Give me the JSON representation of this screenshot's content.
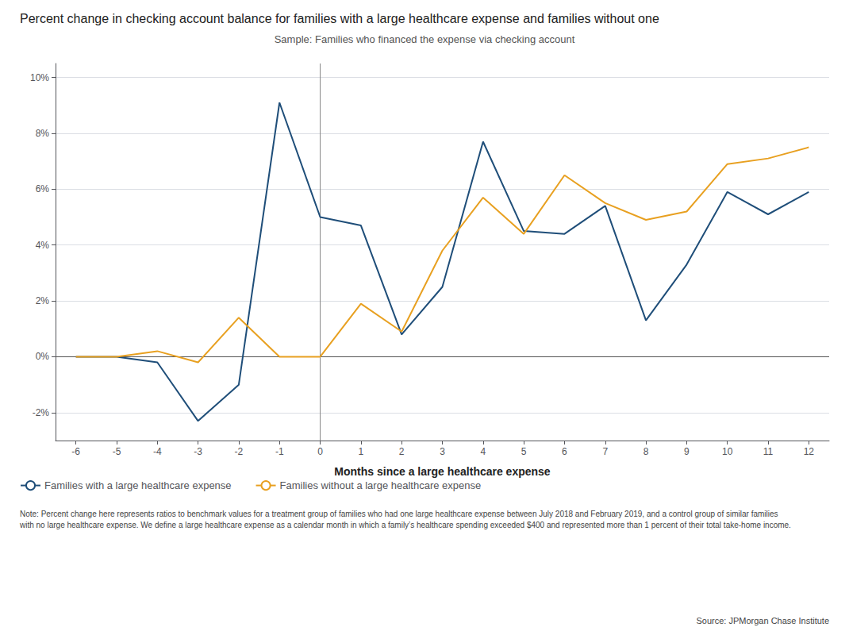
{
  "chart_data": {
    "type": "line",
    "title": "Percent change in checking account balance for families with a large healthcare expense and families without one",
    "subtitle": "Sample: Families who financed the expense via checking account",
    "xlabel": "Months since a large healthcare expense",
    "note": "Note: Percent change here represents ratios to benchmark values for a treatment group of families who had one large healthcare expense between July 2018 and February 2019, and a control group of similar families\nwith no large healthcare expense. We define a large healthcare expense as a calendar month in which a family’s healthcare spending exceeded $400 and represented more than 1 percent of their total take-home income.",
    "source": "Source: JPMorgan Chase Institute",
    "x": [
      -6,
      -5,
      -4,
      -3,
      -2,
      -1,
      0,
      1,
      2,
      3,
      4,
      5,
      6,
      7,
      8,
      9,
      10,
      11,
      12
    ],
    "series": [
      {
        "name": "Families with a large healthcare expense",
        "color": "#1f4e79",
        "values": [
          0.0,
          0.0,
          -0.002,
          -0.023,
          -0.01,
          0.091,
          0.05,
          0.047,
          0.008,
          0.025,
          0.077,
          0.045,
          0.044,
          0.054,
          0.013,
          0.033,
          0.059,
          0.051,
          0.059
        ]
      },
      {
        "name": "Families without a large healthcare expense",
        "color": "#e8a020",
        "values": [
          0.0,
          0.0,
          0.002,
          -0.002,
          0.014,
          0.0,
          0.0,
          0.019,
          0.009,
          0.038,
          0.057,
          0.044,
          0.065,
          0.055,
          0.049,
          0.052,
          0.069,
          0.071,
          0.075
        ]
      }
    ],
    "xlim": [
      -6.5,
      12.5
    ],
    "xticks": [
      -6,
      -5,
      -4,
      -3,
      -2,
      -1,
      0,
      1,
      2,
      3,
      4,
      5,
      6,
      7,
      8,
      9,
      10,
      11,
      12
    ],
    "ylim": [
      -0.03,
      0.105
    ],
    "yticks": [
      {
        "value": -0.02,
        "label": "-2%"
      },
      {
        "value": 0.0,
        "label": "0%"
      },
      {
        "value": 0.02,
        "label": "2%"
      },
      {
        "value": 0.04,
        "label": "4%"
      },
      {
        "value": 0.06,
        "label": "6%"
      },
      {
        "value": 0.08,
        "label": "8%"
      },
      {
        "value": 0.1,
        "label": "10%"
      }
    ],
    "hlines": [
      {
        "value": 0,
        "color": "#555555"
      }
    ],
    "vlines": [
      {
        "value": 0,
        "color": "#888888"
      }
    ],
    "grid": "y",
    "legend": "bottom"
  }
}
